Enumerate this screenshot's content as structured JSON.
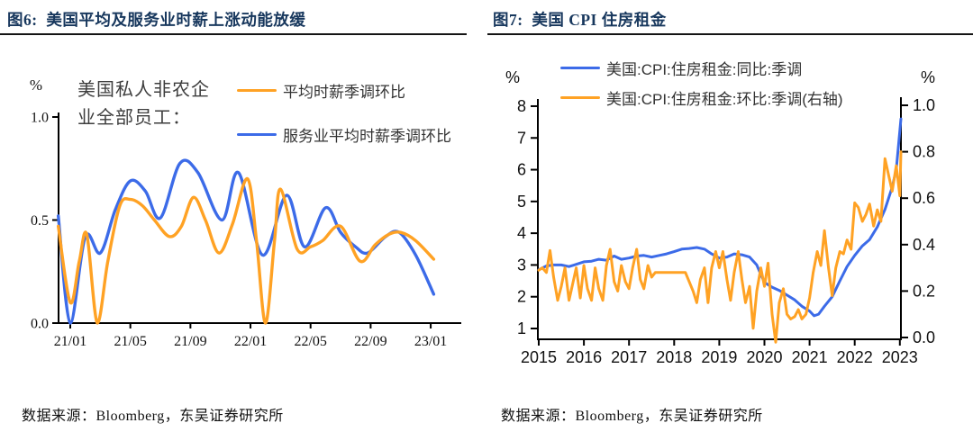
{
  "left_panel": {
    "title": "图6:  美国平均及服务业时薪上涨动能放缓",
    "annotation_line1": "美国私人非农企",
    "annotation_line2": "业全部员工：",
    "legend": [
      {
        "label": "平均时薪季调环比",
        "color": "#FFA224"
      },
      {
        "label": "服务业平均时薪季调环比",
        "color": "#3C6BE8"
      }
    ],
    "source": "数据来源：Bloomberg，东吴证券研究所"
  },
  "right_panel": {
    "title": "图7:  美国 CPI 住房租金",
    "legend": [
      {
        "label": "美国:CPI:住房租金:同比:季调",
        "color": "#3C6BE8"
      },
      {
        "label": "美国:CPI:住房租金:环比:季调(右轴)",
        "color": "#FFA224"
      }
    ],
    "source": "数据来源：Bloomberg，东吴证券研究所"
  },
  "chart_data": [
    {
      "type": "line",
      "title": "美国平均及服务业时薪上涨动能放缓",
      "annotation": "美国私人非农企业全部员工：",
      "unit": "%",
      "ylim": [
        0,
        1
      ],
      "y_ticks": [
        [
          "0.0",
          0
        ],
        [
          "0.5",
          0.5
        ],
        [
          "1.0",
          1
        ]
      ],
      "x_tick_labels": [
        "21/01",
        "21/05",
        "21/09",
        "22/01",
        "22/05",
        "22/09",
        "23/01"
      ],
      "x_tick_months": [
        0,
        4,
        8,
        12,
        16,
        20,
        24
      ],
      "grid": false,
      "legend_position": "top-right",
      "series": [
        {
          "name": "服务业平均时薪季调环比",
          "color": "#3C6BE8",
          "x": [
            -0.8,
            0,
            1,
            2,
            3,
            4,
            5,
            6,
            7.3,
            8.5,
            10.1,
            11.2,
            12.8,
            14.4,
            15.6,
            17,
            18,
            19,
            19.8,
            21,
            21.9,
            23,
            24.2
          ],
          "values": [
            0.52,
            0.0,
            0.42,
            0.34,
            0.55,
            0.69,
            0.64,
            0.51,
            0.775,
            0.73,
            0.5,
            0.73,
            0.33,
            0.62,
            0.37,
            0.56,
            0.44,
            0.37,
            0.34,
            0.42,
            0.44,
            0.33,
            0.14
          ]
        },
        {
          "name": "平均时薪季调环比",
          "color": "#FFA224",
          "x": [
            -0.8,
            0,
            0.6,
            1.1,
            1.8,
            2.5,
            3.3,
            4,
            4.8,
            5.6,
            6.6,
            7.4,
            8.2,
            9,
            9.9,
            10.8,
            11.8,
            12.4,
            13,
            13.6,
            14,
            15.1,
            16,
            16.8,
            18,
            19.3,
            20.3,
            21.2,
            22,
            23,
            24.2
          ],
          "values": [
            0.47,
            0.1,
            0.3,
            0.43,
            0.0,
            0.3,
            0.57,
            0.6,
            0.57,
            0.5,
            0.42,
            0.47,
            0.61,
            0.5,
            0.34,
            0.48,
            0.7,
            0.4,
            0.0,
            0.4,
            0.65,
            0.36,
            0.37,
            0.4,
            0.47,
            0.3,
            0.38,
            0.43,
            0.44,
            0.4,
            0.31
          ]
        }
      ]
    },
    {
      "type": "line",
      "title": "美国 CPI 住房租金",
      "x_tick_labels": [
        "2015",
        "2016",
        "2017",
        "2018",
        "2019",
        "2020",
        "2021",
        "2022",
        "2023"
      ],
      "x_tick_years": [
        2015,
        2016,
        2017,
        2018,
        2019,
        2020,
        2021,
        2022,
        2023
      ],
      "grid": false,
      "legend_position": "top-center",
      "left_axis": {
        "unit": "%",
        "range": [
          1,
          8
        ],
        "ticks": [
          [
            "1",
            1
          ],
          [
            "2",
            2
          ],
          [
            "3",
            3
          ],
          [
            "4",
            4
          ],
          [
            "5",
            5
          ],
          [
            "6",
            6
          ],
          [
            "7",
            7
          ],
          [
            "8",
            8
          ]
        ]
      },
      "right_axis": {
        "unit": "%",
        "range": [
          0,
          1
        ],
        "ticks": [
          [
            "0.0",
            0
          ],
          [
            "0.2",
            0.2
          ],
          [
            "0.4",
            0.4
          ],
          [
            "0.6",
            0.6
          ],
          [
            "0.8",
            0.8
          ],
          [
            "1.0",
            1
          ]
        ]
      },
      "series": [
        {
          "name": "美国:CPI:住房租金:同比:季调",
          "axis": "left",
          "color": "#3C6BE8",
          "x": [
            2015.0,
            2015.17,
            2015.33,
            2015.5,
            2015.67,
            2015.83,
            2016.0,
            2016.17,
            2016.33,
            2016.5,
            2016.67,
            2016.83,
            2017.0,
            2017.17,
            2017.33,
            2017.5,
            2017.67,
            2017.83,
            2018.0,
            2018.17,
            2018.33,
            2018.5,
            2018.67,
            2018.83,
            2019.0,
            2019.17,
            2019.33,
            2019.5,
            2019.67,
            2019.83,
            2019.92,
            2020.0,
            2020.17,
            2020.33,
            2020.5,
            2020.67,
            2020.83,
            2021.0,
            2021.1,
            2021.2,
            2021.33,
            2021.5,
            2021.67,
            2021.83,
            2022.0,
            2022.17,
            2022.33,
            2022.5,
            2022.67,
            2022.83,
            2022.92,
            2023.05
          ],
          "values": [
            2.85,
            2.97,
            3.0,
            3.0,
            2.95,
            3.02,
            3.1,
            3.12,
            3.18,
            3.15,
            3.28,
            3.18,
            3.22,
            3.28,
            3.3,
            3.25,
            3.3,
            3.35,
            3.42,
            3.5,
            3.52,
            3.55,
            3.5,
            3.35,
            3.22,
            3.25,
            3.35,
            3.32,
            3.25,
            3.0,
            2.7,
            2.45,
            2.3,
            2.2,
            2.05,
            1.9,
            1.7,
            1.55,
            1.4,
            1.45,
            1.7,
            2.0,
            2.5,
            2.95,
            3.3,
            3.6,
            3.8,
            4.2,
            4.75,
            5.45,
            6.0,
            7.6
          ]
        },
        {
          "name": "美国:CPI:住房租金:环比:季调(右轴)",
          "axis": "right",
          "color": "#FFA224",
          "x": [
            2015.0,
            2015.08,
            2015.17,
            2015.25,
            2015.33,
            2015.42,
            2015.5,
            2015.58,
            2015.67,
            2015.75,
            2015.83,
            2015.92,
            2016.0,
            2016.08,
            2016.17,
            2016.25,
            2016.33,
            2016.42,
            2016.5,
            2016.58,
            2016.67,
            2016.75,
            2016.83,
            2016.92,
            2017.0,
            2017.08,
            2017.17,
            2017.25,
            2017.33,
            2017.42,
            2017.5,
            2017.58,
            2017.75,
            2017.92,
            2018.08,
            2018.25,
            2018.42,
            2018.5,
            2018.58,
            2018.67,
            2018.75,
            2018.83,
            2018.92,
            2019.0,
            2019.08,
            2019.17,
            2019.25,
            2019.33,
            2019.42,
            2019.5,
            2019.58,
            2019.67,
            2019.75,
            2019.83,
            2019.92,
            2020.0,
            2020.08,
            2020.17,
            2020.25,
            2020.33,
            2020.42,
            2020.5,
            2020.58,
            2020.67,
            2020.75,
            2020.83,
            2020.92,
            2021.0,
            2021.08,
            2021.17,
            2021.25,
            2021.33,
            2021.42,
            2021.5,
            2021.58,
            2021.67,
            2021.75,
            2021.83,
            2021.92,
            2022.0,
            2022.08,
            2022.17,
            2022.25,
            2022.33,
            2022.42,
            2022.5,
            2022.58,
            2022.67,
            2022.75,
            2022.83,
            2022.92,
            2023.0,
            2023.05
          ],
          "values": [
            0.29,
            0.3,
            0.28,
            0.375,
            0.26,
            0.16,
            0.22,
            0.3,
            0.16,
            0.23,
            0.3,
            0.17,
            0.31,
            0.21,
            0.16,
            0.3,
            0.21,
            0.16,
            0.31,
            0.38,
            0.24,
            0.2,
            0.31,
            0.24,
            0.21,
            0.3,
            0.38,
            0.25,
            0.21,
            0.31,
            0.26,
            0.28,
            0.28,
            0.28,
            0.28,
            0.28,
            0.2,
            0.15,
            0.25,
            0.3,
            0.15,
            0.3,
            0.37,
            0.3,
            0.37,
            0.25,
            0.16,
            0.28,
            0.37,
            0.25,
            0.15,
            0.22,
            0.04,
            0.2,
            0.3,
            0.22,
            0.32,
            0.1,
            -0.02,
            0.15,
            0.21,
            0.1,
            0.08,
            0.09,
            0.12,
            0.08,
            0.1,
            0.17,
            0.28,
            0.37,
            0.31,
            0.46,
            0.3,
            0.18,
            0.3,
            0.37,
            0.36,
            0.42,
            0.38,
            0.58,
            0.56,
            0.5,
            0.53,
            0.575,
            0.48,
            0.55,
            0.5,
            0.77,
            0.7,
            0.63,
            0.74,
            0.61,
            0.8
          ]
        }
      ]
    }
  ]
}
